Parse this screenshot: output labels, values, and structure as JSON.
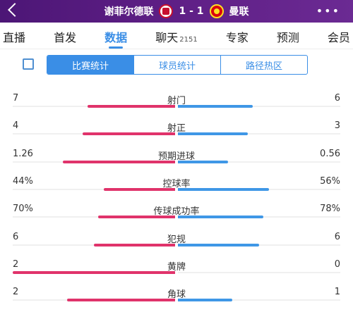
{
  "header": {
    "home_team": "谢菲尔德联",
    "score": "1 - 1",
    "away_team": "曼联"
  },
  "tabs": [
    {
      "label": "直播"
    },
    {
      "label": "首发"
    },
    {
      "label": "数据",
      "active": true
    },
    {
      "label": "聊天",
      "count": "2151"
    },
    {
      "label": "专家"
    },
    {
      "label": "预测"
    },
    {
      "label": "会员"
    }
  ],
  "sub_tabs": [
    {
      "label": "比赛统计",
      "active": true
    },
    {
      "label": "球员统计"
    },
    {
      "label": "路径热区"
    }
  ],
  "colors": {
    "home": "#e0336b",
    "away": "#3f97e6",
    "accent": "#3a8ee6"
  },
  "stats": [
    {
      "label": "射门",
      "home": "7",
      "away": "6",
      "home_share": 0.538,
      "away_share": 0.462
    },
    {
      "label": "射正",
      "home": "4",
      "away": "3",
      "home_share": 0.571,
      "away_share": 0.429
    },
    {
      "label": "预期进球",
      "home": "1.26",
      "away": "0.56",
      "home_share": 0.692,
      "away_share": 0.308
    },
    {
      "label": "控球率",
      "home": "44%",
      "away": "56%",
      "home_share": 0.44,
      "away_share": 0.56
    },
    {
      "label": "传球成功率",
      "home": "70%",
      "away": "78%",
      "home_share": 0.473,
      "away_share": 0.527
    },
    {
      "label": "犯规",
      "home": "6",
      "away": "6",
      "home_share": 0.5,
      "away_share": 0.5
    },
    {
      "label": "黄牌",
      "home": "2",
      "away": "0",
      "home_share": 1.0,
      "away_share": 0.0
    },
    {
      "label": "角球",
      "home": "2",
      "away": "1",
      "home_share": 0.667,
      "away_share": 0.333
    }
  ]
}
